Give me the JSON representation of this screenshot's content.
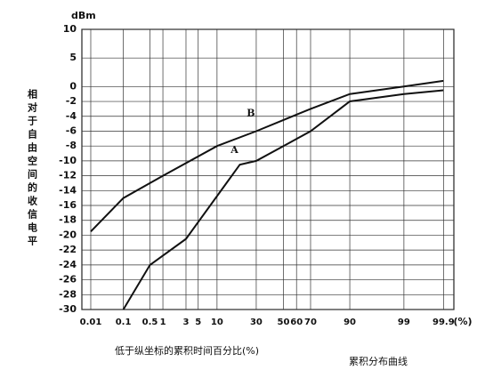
{
  "chart_data": {
    "type": "line",
    "y_label": "相对于自由空间的收信电平",
    "y_unit": "dBm",
    "x_label": "低于纵坐标的累积时间百分比(%)",
    "x_unit": "(%)",
    "caption": "累积分布曲线",
    "x_scale": "probability",
    "xlim": [
      0.005,
      99.95
    ],
    "xticks": [
      0.01,
      0.1,
      0.5,
      1,
      3,
      5,
      10,
      30,
      50,
      60,
      70,
      90,
      99,
      99.9
    ],
    "ylim": [
      -30,
      10
    ],
    "yticks": [
      10,
      5,
      0,
      -2,
      -4,
      -6,
      -8,
      -10,
      -12,
      -14,
      -16,
      -18,
      -20,
      -22,
      -24,
      -26,
      -28,
      -30
    ],
    "grid": true,
    "series": [
      {
        "name": "B",
        "color": "#111111",
        "x": [
          0.01,
          0.1,
          1,
          10,
          30,
          50,
          70,
          90,
          99,
          99.9
        ],
        "values": [
          -19.5,
          -15,
          -12,
          -8,
          -6,
          -4.5,
          -3,
          -1,
          0,
          1
        ]
      },
      {
        "name": "A",
        "color": "#111111",
        "x": [
          0.1,
          0.5,
          3,
          20,
          30,
          50,
          70,
          90,
          99,
          99.9
        ],
        "values": [
          -30,
          -24,
          -20.5,
          -10.5,
          -10,
          -8,
          -6,
          -2,
          -1,
          -0.5
        ]
      }
    ]
  }
}
